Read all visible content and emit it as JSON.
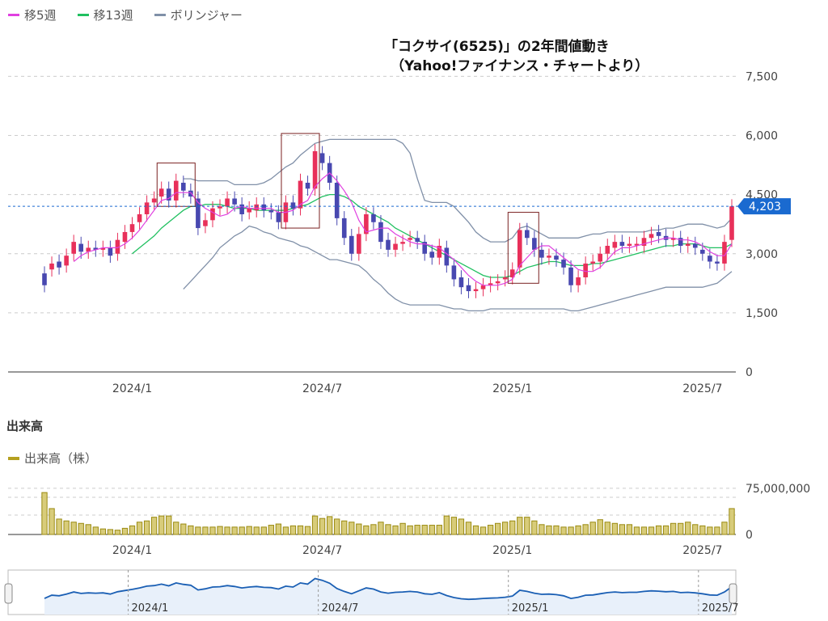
{
  "legend": {
    "ma5_label": "移5週",
    "ma13_label": "移13週",
    "bollinger_label": "ボリンジャー",
    "ma5_color": "#e040e0",
    "ma13_color": "#20c060",
    "bollinger_color": "#8090a8"
  },
  "title": {
    "line1": "「コクサイ(6525)」の2年間値動き",
    "line2": "（Yahoo!ファイナンス・チャートより）"
  },
  "volume_section": {
    "heading": "出来高",
    "legend_label": "出来高（株）",
    "color": "#b5a020"
  },
  "chart_data": [
    {
      "type": "candlestick",
      "name": "price",
      "x_ticks": [
        "2024/1",
        "2024/7",
        "2025/1",
        "2025/7"
      ],
      "x_tick_index": [
        12,
        38,
        64,
        90
      ],
      "y_ticks": [
        "7,500",
        "6,000",
        "4,500",
        "3,000",
        "1,500",
        "0"
      ],
      "y_tick_values": [
        7500,
        6000,
        4500,
        3000,
        1500,
        0
      ],
      "ylim": [
        0,
        8000
      ],
      "current_price_label": "4,203",
      "current_price": 4203,
      "up_color": "#e8305a",
      "down_color": "#4848b0",
      "close": [
        2200,
        2750,
        2650,
        2950,
        3300,
        3050,
        3150,
        3100,
        3150,
        2950,
        3350,
        3550,
        3750,
        4000,
        4300,
        4400,
        4650,
        4350,
        4850,
        4600,
        4450,
        3650,
        3850,
        4150,
        4200,
        4400,
        4250,
        4000,
        4150,
        4250,
        4100,
        4050,
        3800,
        4300,
        4150,
        4850,
        4650,
        5600,
        5300,
        4800,
        3900,
        3400,
        3000,
        3500,
        4000,
        3800,
        3300,
        3100,
        3250,
        3300,
        3400,
        3300,
        3000,
        2900,
        3200,
        2700,
        2350,
        2150,
        2050,
        2100,
        2200,
        2250,
        2300,
        2400,
        2600,
        3600,
        3400,
        3100,
        2900,
        2950,
        2850,
        2650,
        2200,
        2400,
        2750,
        2800,
        3000,
        3200,
        3300,
        3200,
        3250,
        3250,
        3400,
        3500,
        3450,
        3350,
        3400,
        3200,
        3250,
        3150,
        3000,
        2800,
        2750,
        3300,
        4203
      ],
      "open": [
        2500,
        2600,
        2800,
        2700,
        3000,
        3250,
        3050,
        3150,
        3100,
        3150,
        3000,
        3300,
        3550,
        3800,
        4000,
        4300,
        4450,
        4650,
        4350,
        4800,
        4600,
        4400,
        3700,
        3850,
        4150,
        4200,
        4400,
        4250,
        4050,
        4100,
        4250,
        4100,
        4050,
        3800,
        4300,
        4150,
        4800,
        4650,
        5550,
        5300,
        4800,
        3900,
        3450,
        3000,
        3500,
        4000,
        3800,
        3350,
        3100,
        3250,
        3350,
        3400,
        3300,
        3050,
        2900,
        3150,
        2700,
        2400,
        2200,
        2050,
        2100,
        2200,
        2250,
        2350,
        2400,
        2650,
        3600,
        3400,
        3100,
        2900,
        2950,
        2850,
        2650,
        2200,
        2400,
        2750,
        2800,
        3000,
        3150,
        3300,
        3200,
        3250,
        3200,
        3400,
        3550,
        3450,
        3350,
        3400,
        3200,
        3250,
        3100,
        2950,
        2800,
        2750,
        3350
      ],
      "ma5": [
        null,
        null,
        null,
        null,
        2800,
        2950,
        3050,
        3100,
        3150,
        3150,
        3150,
        3250,
        3400,
        3600,
        3850,
        4100,
        4350,
        4400,
        4550,
        4550,
        4550,
        4300,
        4150,
        4050,
        3950,
        4000,
        4150,
        4200,
        4150,
        4150,
        4150,
        4150,
        4050,
        4050,
        4100,
        4250,
        4350,
        4700,
        4900,
        5050,
        4850,
        4600,
        4300,
        3850,
        3550,
        3600,
        3650,
        3650,
        3500,
        3400,
        3300,
        3250,
        3250,
        3200,
        3150,
        3000,
        2850,
        2650,
        2450,
        2300,
        2200,
        2200,
        2200,
        2250,
        2350,
        2700,
        2900,
        3100,
        3200,
        3200,
        3050,
        2900,
        2750,
        2600,
        2550,
        2550,
        2650,
        2850,
        3050,
        3150,
        3150,
        3200,
        3250,
        3300,
        3350,
        3400,
        3400,
        3350,
        3350,
        3300,
        3200,
        3050,
        2950,
        2950,
        3250
      ],
      "ma13": [
        null,
        null,
        null,
        null,
        null,
        null,
        null,
        null,
        null,
        null,
        null,
        null,
        3000,
        3150,
        3300,
        3450,
        3650,
        3800,
        3950,
        4100,
        4200,
        4200,
        4250,
        4250,
        4250,
        4200,
        4150,
        4150,
        4150,
        4100,
        4100,
        4100,
        4100,
        4100,
        4150,
        4200,
        4250,
        4350,
        4450,
        4500,
        4500,
        4450,
        4350,
        4200,
        4100,
        4000,
        3900,
        3800,
        3650,
        3550,
        3450,
        3350,
        3250,
        3150,
        3050,
        2950,
        2850,
        2750,
        2650,
        2550,
        2450,
        2400,
        2400,
        2400,
        2450,
        2550,
        2650,
        2700,
        2750,
        2800,
        2800,
        2750,
        2700,
        2700,
        2700,
        2750,
        2750,
        2800,
        2850,
        2900,
        2950,
        3000,
        3050,
        3100,
        3150,
        3200,
        3200,
        3250,
        3250,
        3250,
        3200,
        3150,
        3150,
        3150,
        3250
      ],
      "bb_upper": [
        null,
        null,
        null,
        null,
        null,
        null,
        null,
        null,
        null,
        null,
        null,
        null,
        null,
        null,
        null,
        null,
        null,
        null,
        null,
        4900,
        4900,
        4850,
        4850,
        4850,
        4850,
        4850,
        4750,
        4750,
        4750,
        4750,
        4800,
        4900,
        5050,
        5200,
        5300,
        5500,
        5650,
        5800,
        5850,
        5900,
        5900,
        5900,
        5900,
        5900,
        5900,
        5900,
        5900,
        5900,
        5900,
        5800,
        5550,
        4900,
        4350,
        4300,
        4300,
        4300,
        4200,
        4000,
        3800,
        3550,
        3400,
        3300,
        3300,
        3300,
        3400,
        3650,
        3700,
        3600,
        3500,
        3400,
        3400,
        3400,
        3400,
        3400,
        3450,
        3500,
        3500,
        3550,
        3550,
        3550,
        3550,
        3550,
        3550,
        3600,
        3600,
        3650,
        3650,
        3700,
        3750,
        3750,
        3750,
        3700,
        3650,
        3700,
        3900
      ],
      "bb_lower": [
        null,
        null,
        null,
        null,
        null,
        null,
        null,
        null,
        null,
        null,
        null,
        null,
        null,
        null,
        null,
        null,
        null,
        null,
        null,
        2100,
        2300,
        2500,
        2700,
        2900,
        3150,
        3300,
        3450,
        3550,
        3700,
        3650,
        3550,
        3500,
        3400,
        3350,
        3300,
        3200,
        3150,
        3050,
        2950,
        2850,
        2850,
        2800,
        2750,
        2700,
        2550,
        2350,
        2200,
        2000,
        1850,
        1750,
        1700,
        1700,
        1700,
        1700,
        1700,
        1650,
        1600,
        1600,
        1550,
        1550,
        1550,
        1600,
        1600,
        1600,
        1600,
        1600,
        1600,
        1600,
        1600,
        1600,
        1600,
        1600,
        1550,
        1550,
        1600,
        1650,
        1700,
        1750,
        1800,
        1850,
        1900,
        1950,
        2000,
        2050,
        2100,
        2150,
        2150,
        2150,
        2150,
        2150,
        2150,
        2200,
        2250,
        2400,
        2550
      ],
      "highlight_boxes": [
        [
          16,
          20
        ],
        [
          33,
          37
        ],
        [
          64,
          67
        ]
      ]
    },
    {
      "type": "bar",
      "name": "volume",
      "x_ticks": [
        "2024/1",
        "2024/7",
        "2025/1",
        "2025/7"
      ],
      "y_ticks": [
        "75,000,000",
        "0"
      ],
      "y_tick_values": [
        75000000,
        0
      ],
      "ylim": [
        0,
        80000000
      ],
      "values": [
        68000000,
        42000000,
        25000000,
        22000000,
        20000000,
        18000000,
        16000000,
        12000000,
        9000000,
        8000000,
        7000000,
        10000000,
        14000000,
        20000000,
        22000000,
        28000000,
        30000000,
        30000000,
        20000000,
        17000000,
        14000000,
        12000000,
        12000000,
        12000000,
        13000000,
        12000000,
        12000000,
        12000000,
        13000000,
        12000000,
        12000000,
        15000000,
        17000000,
        12000000,
        14000000,
        14000000,
        13000000,
        30000000,
        26000000,
        29000000,
        25000000,
        22000000,
        20000000,
        17000000,
        14000000,
        16000000,
        20000000,
        16000000,
        14000000,
        18000000,
        14000000,
        15000000,
        15000000,
        15000000,
        15000000,
        30000000,
        28000000,
        25000000,
        20000000,
        14000000,
        12000000,
        15000000,
        18000000,
        20000000,
        22000000,
        28000000,
        28000000,
        22000000,
        16000000,
        14000000,
        14000000,
        12000000,
        12000000,
        14000000,
        16000000,
        20000000,
        24000000,
        20000000,
        18000000,
        16000000,
        16000000,
        12000000,
        12000000,
        12000000,
        14000000,
        14000000,
        18000000,
        18000000,
        20000000,
        16000000,
        14000000,
        12000000,
        12000000,
        20000000,
        42000000
      ]
    },
    {
      "type": "area",
      "name": "navigator",
      "x_ticks": [
        "2024/1",
        "2024/7",
        "2025/1",
        "2025/7"
      ]
    }
  ]
}
